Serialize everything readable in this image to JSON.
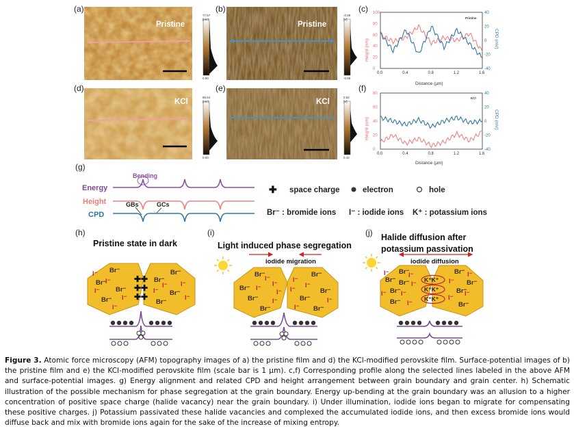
{
  "panels": {
    "a": {
      "label": "(a)",
      "tag": "Pristine"
    },
    "b": {
      "label": "(b)",
      "tag": "Pristine"
    },
    "c": {
      "label": "(c)",
      "tag": "Pristine"
    },
    "d": {
      "label": "(d)",
      "tag": "KCl"
    },
    "e": {
      "label": "(e)",
      "tag": "KCl"
    },
    "f": {
      "label": "(f)",
      "tag": "KCl"
    },
    "g": {
      "label": "(g)"
    },
    "h": {
      "label": "(h)",
      "title": "Pristine state in dark"
    },
    "i": {
      "label": "(i)",
      "title": "Light induced phase segregation",
      "arrow_label": "iodide migration"
    },
    "j": {
      "label": "(j)",
      "title_line1": "Halide diffusion after",
      "title_line2": "potassium passivation",
      "arrow_label": "iodide diffusion"
    }
  },
  "colorbars": {
    "a": {
      "top": "77.57",
      "unit": "[nm]",
      "bottom": "0.00"
    },
    "b": {
      "top": "-0.59",
      "unit": "[V]",
      "bottom": "-0.69"
    },
    "d": {
      "top": "85.64",
      "unit": "[nm]",
      "bottom": "0.00"
    },
    "e": {
      "top": "0.52",
      "unit": "[V]",
      "bottom": "0.42"
    }
  },
  "profiles": {
    "xlabel": "Distance (μm)",
    "ylabel_left": "Height (nm)",
    "ylabel_right": "CPD (mV)",
    "xticks": [
      "0.0",
      "0.4",
      "0.8",
      "1.2",
      "1.6"
    ],
    "c_left_ticks": [
      "100",
      "80",
      "60",
      "40",
      "20",
      "0"
    ],
    "c_right_ticks": [
      "40",
      "20",
      "0",
      "-20",
      "-40"
    ],
    "f_left_ticks": [
      "80",
      "60",
      "40",
      "20",
      "0"
    ],
    "f_right_ticks": [
      "40",
      "20",
      "0",
      "-20",
      "-40"
    ]
  },
  "diagram_g": {
    "energy": "Energy",
    "height": "Height",
    "cpd": "CPD",
    "bending": "Bending",
    "gbs": "GBs",
    "gcs": "GCs",
    "legend_space_charge": "space charge",
    "legend_electron": "electron",
    "legend_hole": "hole",
    "legend_br": "Br⁻ : bromide ions",
    "legend_i": "I⁻ : iodide ions",
    "legend_k": "K⁺ : potassium ions"
  },
  "ions": {
    "br": "Br⁻",
    "i": "I⁻",
    "kk": "K⁺K⁺"
  },
  "colors": {
    "height_line": "#f08080",
    "cpd_line": "#2e75a8",
    "energy_line": "#8a4ea3",
    "grain_fill": "#f2bd2a",
    "ion_red": "#c0262d"
  },
  "chart_data": [
    {
      "type": "line",
      "title": "Pristine",
      "xlabel": "Distance (μm)",
      "ylabel": "Height (nm)",
      "y2label": "CPD (mV)",
      "x": [
        0.0,
        0.2,
        0.4,
        0.6,
        0.8,
        1.0,
        1.2,
        1.4,
        1.6
      ],
      "series": [
        {
          "name": "Height",
          "values": [
            60,
            48,
            55,
            75,
            45,
            55,
            50,
            62,
            30
          ]
        },
        {
          "name": "CPD",
          "values": [
            10,
            -15,
            15,
            -20,
            20,
            -10,
            15,
            -5,
            -25
          ]
        }
      ],
      "ylim": [
        0,
        100
      ],
      "y2lim": [
        -40,
        40
      ]
    },
    {
      "type": "line",
      "title": "KCl",
      "xlabel": "Distance (μm)",
      "ylabel": "Height (nm)",
      "y2label": "CPD (mV)",
      "x": [
        0.0,
        0.2,
        0.4,
        0.6,
        0.8,
        1.0,
        1.2,
        1.4,
        1.6
      ],
      "series": [
        {
          "name": "Height",
          "values": [
            10,
            20,
            8,
            15,
            5,
            10,
            22,
            12,
            25
          ]
        },
        {
          "name": "CPD",
          "values": [
            5,
            0,
            -5,
            2,
            -8,
            0,
            5,
            -2,
            0
          ]
        }
      ],
      "ylim": [
        0,
        80
      ],
      "y2lim": [
        -40,
        40
      ]
    }
  ],
  "caption": {
    "label": "Figure 3.",
    "text": "Atomic force microscopy (AFM) topography images of a) the pristine film and d) the KCl-modified perovskite film. Surface-potential images of b) the pristine film and e) the KCl-modified perovskite film (scale bar is 1 μm). c,f) Corresponding profile along the selected lines labeled in the above AFM and surface-potential images. g) Energy alignment and related CPD and height arrangement between grain boundary and grain center. h) Schematic illustration of the possible mechanism for phase segregation at the grain boundary. Energy up-bending at the grain boundary was an allusion to a higher concentration of positive space charge (halide vacancy) near the grain boundary. i) Under illumination, iodide ions began to migrate for compensating these positive charges. j) Potassium passivated these halide vacancies and complexed the accumulated iodide ions, and then excess bromide ions would diffuse back and mix with bromide ions again for the sake of the increase of mixing entropy."
  }
}
